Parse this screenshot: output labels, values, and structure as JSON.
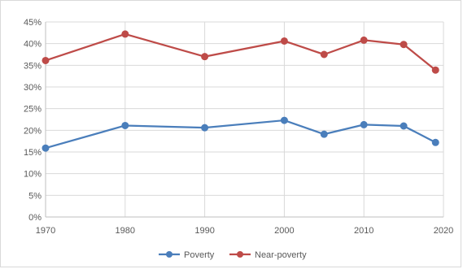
{
  "chart_data": {
    "type": "line",
    "title": "",
    "xlabel": "",
    "ylabel": "",
    "x": [
      1970,
      1980,
      1990,
      2000,
      2005,
      2010,
      2015,
      2019
    ],
    "xlim": [
      1970,
      2020
    ],
    "xticks": [
      1970,
      1980,
      1990,
      2000,
      2010,
      2020
    ],
    "xtick_labels": [
      "1970",
      "1980",
      "1990",
      "2000",
      "2010",
      "2020"
    ],
    "ylim": [
      0,
      45
    ],
    "yticks": [
      0,
      5,
      10,
      15,
      20,
      25,
      30,
      35,
      40,
      45
    ],
    "ytick_labels": [
      "0%",
      "5%",
      "10%",
      "15%",
      "20%",
      "25%",
      "30%",
      "35%",
      "40%",
      "45%"
    ],
    "grid": true,
    "legend_position": "bottom",
    "series": [
      {
        "name": "Poverty",
        "color": "#4a7ebb",
        "values": [
          15.9,
          21.1,
          20.6,
          22.3,
          19.1,
          21.3,
          21.0,
          17.2
        ]
      },
      {
        "name": "Near-poverty",
        "color": "#be4b48",
        "values": [
          36.1,
          42.2,
          37.0,
          40.6,
          37.5,
          40.8,
          39.8,
          33.9
        ]
      }
    ]
  }
}
